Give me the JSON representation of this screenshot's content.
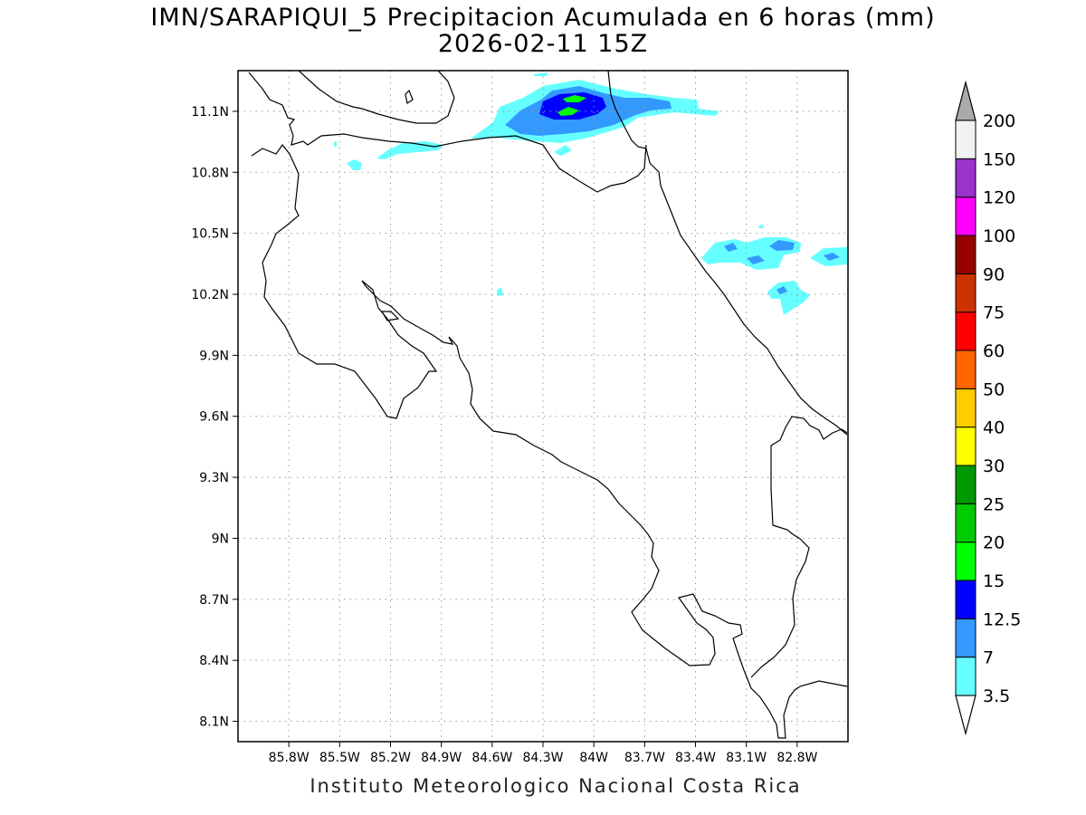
{
  "title_line1": "IMN/SARAPIQUI_5 Precipitacion Acumulada en 6 horas (mm)",
  "title_line2": "2026-02-11 15Z",
  "credit": "Instituto Meteorologico Nacional Costa Rica",
  "map": {
    "lon_range": [
      -86.1,
      -82.5
    ],
    "lat_range": [
      8.0,
      11.3
    ],
    "lon_ticks": [
      {
        "value": -85.8,
        "label": "85.8W"
      },
      {
        "value": -85.5,
        "label": "85.5W"
      },
      {
        "value": -85.2,
        "label": "85.2W"
      },
      {
        "value": -84.9,
        "label": "84.9W"
      },
      {
        "value": -84.6,
        "label": "84.6W"
      },
      {
        "value": -84.3,
        "label": "84.3W"
      },
      {
        "value": -84.0,
        "label": "84W"
      },
      {
        "value": -83.7,
        "label": "83.7W"
      },
      {
        "value": -83.4,
        "label": "83.4W"
      },
      {
        "value": -83.1,
        "label": "83.1W"
      },
      {
        "value": -82.8,
        "label": "82.8W"
      }
    ],
    "lat_ticks": [
      {
        "value": 11.1,
        "label": "11.1N"
      },
      {
        "value": 10.8,
        "label": "10.8N"
      },
      {
        "value": 10.5,
        "label": "10.5N"
      },
      {
        "value": 10.2,
        "label": "10.2N"
      },
      {
        "value": 9.9,
        "label": "9.9N"
      },
      {
        "value": 9.6,
        "label": "9.6N"
      },
      {
        "value": 9.3,
        "label": "9.3N"
      },
      {
        "value": 9.0,
        "label": "9N"
      },
      {
        "value": 8.7,
        "label": "8.7N"
      },
      {
        "value": 8.4,
        "label": "8.4N"
      },
      {
        "value": 8.1,
        "label": "8.1N"
      }
    ]
  },
  "colorbar": {
    "levels": [
      {
        "label": "3.5",
        "color": "#66ffff"
      },
      {
        "label": "7",
        "color": "#3399ff"
      },
      {
        "label": "12.5",
        "color": "#0000ff"
      },
      {
        "label": "15",
        "color": "#00ff00"
      },
      {
        "label": "20",
        "color": "#00cc00"
      },
      {
        "label": "25",
        "color": "#009900"
      },
      {
        "label": "30",
        "color": "#ffff00"
      },
      {
        "label": "40",
        "color": "#ffcc00"
      },
      {
        "label": "50",
        "color": "#ff6600"
      },
      {
        "label": "60",
        "color": "#ff0000"
      },
      {
        "label": "75",
        "color": "#cc3300"
      },
      {
        "label": "90",
        "color": "#990000"
      },
      {
        "label": "100",
        "color": "#ff00ff"
      },
      {
        "label": "120",
        "color": "#9933cc"
      },
      {
        "label": "150",
        "color": "#f2f2f2"
      }
    ],
    "top_label": "200",
    "over_color": "#aaaaaa",
    "under_color": "#ffffff"
  },
  "precip_cells": [
    {
      "lon": -84.1,
      "lat": 11.1,
      "value": 15,
      "color": "#00ff00"
    },
    {
      "lon": -84.1,
      "lat": 11.1,
      "value": 12.5,
      "color": "#0000ff"
    },
    {
      "lon": -84.2,
      "lat": 11.0,
      "value": 7,
      "color": "#3399ff"
    },
    {
      "lon": -83.0,
      "lat": 10.45,
      "value": 7,
      "color": "#3399ff"
    },
    {
      "lon": -83.4,
      "lat": 10.4,
      "value": 3.5,
      "color": "#66ffff"
    }
  ]
}
